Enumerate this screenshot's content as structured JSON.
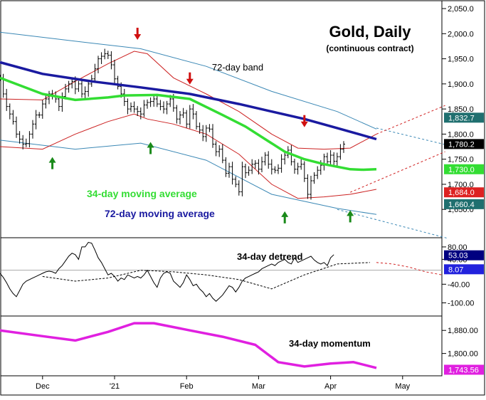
{
  "chart_data": [
    {
      "panel": "price",
      "type": "line",
      "title": "Gold, Daily",
      "subtitle": "(continuous contract)",
      "x_axis": {
        "labels": [
          "Dec",
          "'21",
          "Feb",
          "Mar",
          "Apr",
          "May"
        ],
        "label_day_index": [
          0,
          22,
          44,
          66,
          88,
          110
        ],
        "range_days": [
          -13,
          122
        ]
      },
      "ylim": [
        1595,
        2060
      ],
      "yticks": [
        "2,050.0",
        "2,000.0",
        "1,950.0",
        "1,900.0",
        "1,850.0",
        "1,800.0",
        "1,750.0",
        "1,700.0",
        "1,650.0"
      ],
      "ytick_values": [
        2050,
        2000,
        1950,
        1900,
        1850,
        1800,
        1750,
        1700,
        1650
      ],
      "annotations": [
        "72-day band",
        "34-day moving average",
        "72-day moving average"
      ],
      "colors": {
        "ma34": "#33dd33",
        "ma72": "#1a1aa0",
        "band72": "#3b88b5",
        "band34": "#cc2222",
        "projection": "#d02020",
        "up_arrow": "#1a8a1a",
        "down_arrow": "#d01010"
      },
      "series": [
        {
          "name": "34-day moving average",
          "x": [
            -13,
            0,
            10,
            20,
            25,
            35,
            45,
            55,
            62,
            68,
            74,
            80,
            86,
            94,
            98,
            102
          ],
          "values": [
            1912,
            1880,
            1868,
            1873,
            1877,
            1878,
            1870,
            1838,
            1815,
            1790,
            1765,
            1750,
            1740,
            1730,
            1729,
            1730
          ]
        },
        {
          "name": "72-day moving average",
          "x": [
            -13,
            0,
            15,
            30,
            45,
            60,
            70,
            80,
            90,
            102
          ],
          "values": [
            1943,
            1920,
            1905,
            1893,
            1880,
            1860,
            1845,
            1830,
            1812,
            1790
          ]
        }
      ],
      "price_bars": {
        "x_start": -13,
        "close": [
          1912,
          1880,
          1855,
          1840,
          1825,
          1800,
          1790,
          1780,
          1781,
          1800,
          1820,
          1838,
          1838,
          1860,
          1870,
          1880,
          1875,
          1870,
          1855,
          1875,
          1890,
          1900,
          1905,
          1890,
          1900,
          1880,
          1885,
          1900,
          1910,
          1930,
          1950,
          1955,
          1960,
          1957,
          1938,
          1910,
          1895,
          1880,
          1865,
          1850,
          1855,
          1850,
          1845,
          1840,
          1858,
          1863,
          1865,
          1870,
          1860,
          1855,
          1850,
          1860,
          1870,
          1852,
          1830,
          1838,
          1842,
          1820,
          1850,
          1840,
          1815,
          1808,
          1795,
          1812,
          1810,
          1780,
          1765,
          1770,
          1748,
          1722,
          1735,
          1710,
          1700,
          1685,
          1735,
          1723,
          1728,
          1740,
          1742,
          1730,
          1745,
          1758,
          1740,
          1730,
          1728,
          1732,
          1750,
          1758,
          1768,
          1745,
          1730,
          1735,
          1740,
          1712,
          1680,
          1707,
          1718,
          1728,
          1738,
          1755,
          1745,
          1758,
          1746,
          1755,
          1770,
          1780
        ]
      },
      "bands": {
        "band72_upper": {
          "x": [
            -13,
            10,
            30,
            50,
            70,
            90,
            102
          ],
          "values": [
            2003,
            1985,
            1970,
            1935,
            1885,
            1845,
            1810
          ]
        },
        "band72_lower": {
          "x": [
            -13,
            10,
            30,
            50,
            70,
            90,
            102
          ],
          "values": [
            1788,
            1770,
            1782,
            1748,
            1680,
            1652,
            1640
          ]
        },
        "band34_upper": {
          "x": [
            -13,
            0,
            10,
            20,
            28,
            32,
            40,
            50,
            60,
            70,
            78,
            86,
            94,
            102
          ],
          "values": [
            1870,
            1868,
            1905,
            1940,
            1965,
            1960,
            1912,
            1880,
            1845,
            1800,
            1772,
            1770,
            1772,
            1800
          ]
        },
        "band34_lower": {
          "x": [
            -13,
            0,
            10,
            20,
            28,
            32,
            40,
            50,
            60,
            70,
            78,
            86,
            94,
            102
          ],
          "values": [
            1775,
            1770,
            1800,
            1825,
            1840,
            1830,
            1820,
            1800,
            1760,
            1700,
            1672,
            1675,
            1680,
            1690
          ]
        },
        "projection_band72_upper": {
          "x": [
            102,
            125
          ],
          "values": [
            1812,
            1776
          ]
        },
        "projection_band72_lower": {
          "x": [
            90,
            124
          ],
          "values": [
            1650,
            1592
          ]
        },
        "projection_band34_upper": {
          "x": [
            102,
            123
          ],
          "values": [
            1800,
            1857
          ]
        },
        "projection_band34_lower": {
          "x": [
            94,
            123
          ],
          "values": [
            1684,
            1765
          ]
        },
        "projection_ma72": {
          "x": [
            90,
            102
          ],
          "values": [
            1812,
            1790
          ]
        }
      },
      "arrows": {
        "up": [
          {
            "x": 3,
            "value": 1750
          },
          {
            "x": 33,
            "value": 1780
          },
          {
            "x": 74,
            "value": 1642
          },
          {
            "x": 94,
            "value": 1644
          }
        ],
        "down": [
          {
            "x": 29,
            "value": 1992
          },
          {
            "x": 45,
            "value": 1903
          },
          {
            "x": 80,
            "value": 1818
          }
        ]
      },
      "value_labels": [
        {
          "text": "1,832.7",
          "value": 1832.7,
          "bg": "#1f6f6f"
        },
        {
          "text": "1,780.2",
          "value": 1780.2,
          "bg": "#000000"
        },
        {
          "text": "1,730.0",
          "value": 1730.0,
          "bg": "#33dd33"
        },
        {
          "text": "1,684.0",
          "value": 1684.0,
          "bg": "#dd2222"
        },
        {
          "text": "1,660.4",
          "value": 1660.4,
          "bg": "#1f6f6f"
        }
      ]
    },
    {
      "panel": "detrend",
      "type": "line",
      "annotation": "34-day detrend",
      "ylim": [
        -140,
        105
      ],
      "yticks": [
        "80.00",
        "40.00",
        "-40.00",
        "-100.00"
      ],
      "ytick_values": [
        80,
        40,
        -40,
        -100
      ],
      "ytick_bg_labels": [
        {
          "text": "53.03",
          "value": 53.03,
          "bg": "#000080"
        },
        {
          "text": "8.07",
          "value": 8.07,
          "bg": "#2222dd"
        }
      ],
      "zero_value": 5,
      "detrend": [
        -5,
        -18,
        -35,
        -55,
        -70,
        -80,
        -60,
        -40,
        -30,
        -25,
        -20,
        -15,
        -10,
        -5,
        0,
        2,
        0,
        -5,
        10,
        20,
        35,
        50,
        60,
        55,
        40,
        80,
        80,
        95,
        92,
        70,
        45,
        30,
        10,
        -10,
        -5,
        -15,
        -30,
        -20,
        -25,
        -10,
        -15,
        -20,
        -15,
        -20,
        -10,
        5,
        -15,
        -35,
        -50,
        -20,
        -5,
        0,
        -5,
        -30,
        -40,
        -50,
        -35,
        -10,
        -25,
        -45,
        -40,
        -55,
        -65,
        -80,
        -70,
        -85,
        -95,
        -85,
        -75,
        -60,
        -45,
        -50,
        -65,
        -50,
        -30,
        -20,
        -15,
        -10,
        -5,
        0,
        10,
        15,
        20,
        25,
        20,
        30,
        35,
        40,
        30,
        25,
        45,
        30,
        35,
        40,
        45,
        50,
        38,
        30,
        25,
        30,
        20,
        45,
        55
      ],
      "detrend_x_start": 0,
      "smooth": {
        "x": [
          0,
          10,
          20,
          30,
          40,
          50,
          60,
          70,
          80,
          90,
          100
        ],
        "values": [
          -15,
          -30,
          -20,
          5,
          0,
          -10,
          -25,
          -55,
          -10,
          25,
          30
        ]
      },
      "projection": {
        "x": [
          102,
          107,
          112,
          117,
          122
        ],
        "values": [
          30,
          25,
          15,
          0,
          -10
        ]
      }
    },
    {
      "panel": "momentum",
      "type": "line",
      "annotation": "34-day momentum",
      "ylim": [
        1725,
        1925
      ],
      "yticks": [
        "1,880.00",
        "1,800.00"
      ],
      "ytick_values": [
        1880,
        1800
      ],
      "value_label": {
        "text": "1,743.56",
        "value": 1743.56,
        "bg": "#e020e0"
      },
      "series": [
        {
          "name": "34-day momentum",
          "x": [
            -13,
            0,
            10,
            20,
            28,
            34,
            45,
            55,
            65,
            72,
            80,
            88,
            95,
            102
          ],
          "values": [
            1880,
            1860,
            1845,
            1875,
            1905,
            1905,
            1880,
            1858,
            1830,
            1770,
            1755,
            1765,
            1770,
            1750
          ]
        }
      ]
    }
  ]
}
